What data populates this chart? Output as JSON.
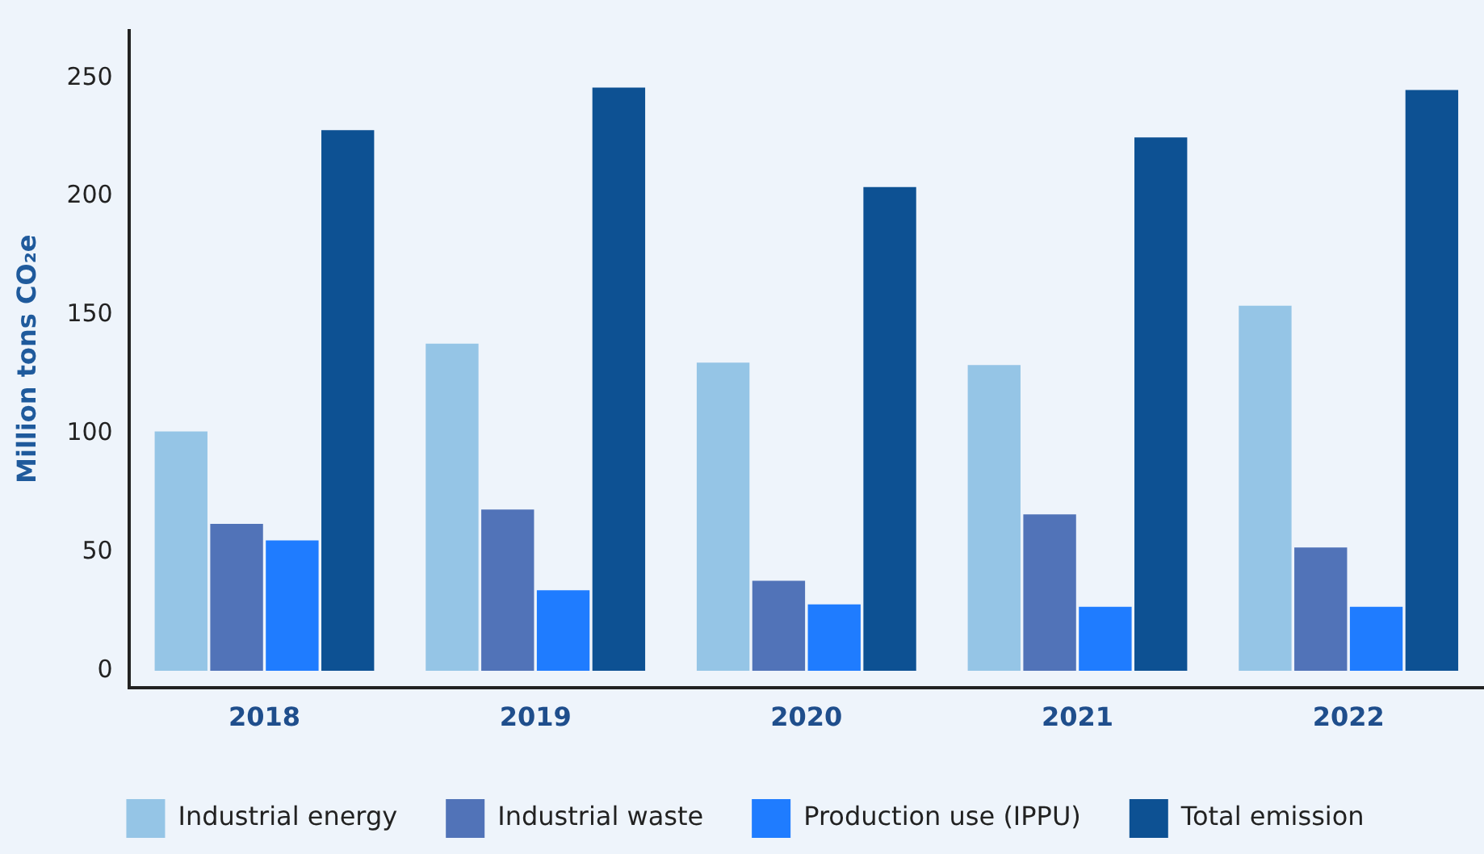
{
  "chart_data": {
    "type": "bar",
    "ylabel": "Million tons CO₂e",
    "categories": [
      "2018",
      "2019",
      "2020",
      "2021",
      "2022"
    ],
    "series": [
      {
        "name": "Industrial energy",
        "color": "#95c5e6",
        "values": [
          101,
          138,
          130,
          129,
          154
        ]
      },
      {
        "name": "Industrial waste",
        "color": "#5173b8",
        "values": [
          62,
          68,
          38,
          66,
          52
        ]
      },
      {
        "name": "Production use (IPPU)",
        "color": "#1f7cff",
        "values": [
          55,
          34,
          28,
          27,
          27
        ]
      },
      {
        "name": "Total emission",
        "color": "#0d5193",
        "values": [
          228,
          246,
          204,
          225,
          245
        ]
      }
    ],
    "ylim": [
      -7,
      270
    ],
    "yticks": [
      0,
      50,
      100,
      150,
      200,
      250
    ],
    "grid": false,
    "legend": "bottom"
  }
}
